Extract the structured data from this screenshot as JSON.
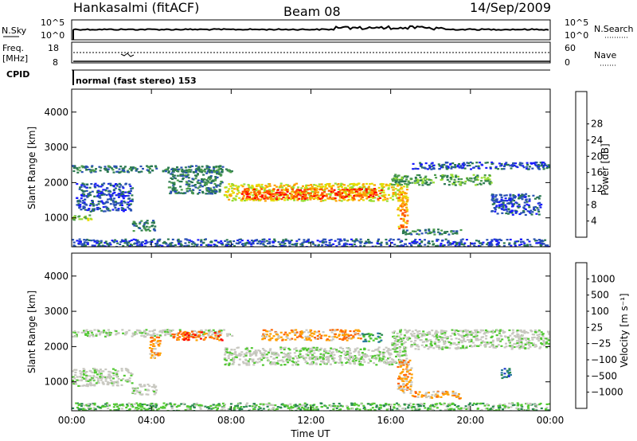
{
  "header": {
    "station": "Hankasalmi (fitACF)",
    "beam": "Beam 08",
    "date": "14/Sep/2009"
  },
  "top_panels": {
    "nsky_label": "N.Sky",
    "nsky_ticks": [
      "10^5",
      "10^0"
    ],
    "nsearch_label": "N.Search",
    "nsearch_ticks": [
      "10^5",
      "10^0"
    ],
    "freq_label_1": "Freq.",
    "freq_label_2": "[MHz]",
    "freq_ticks": [
      "18",
      "8"
    ],
    "nave_label": "Nave",
    "nave_ticks": [
      "60",
      "0"
    ],
    "cpid_label": "CPID",
    "cpid_value": "normal (fast stereo) 153"
  },
  "chart_data": [
    {
      "type": "heatmap",
      "quantity": "Power",
      "x_ticks": [
        "00:00",
        "04:00",
        "08:00",
        "12:00",
        "16:00",
        "20:00",
        "00:00"
      ],
      "xlim_hours": [
        0,
        24
      ],
      "ylabel": "Slant Range [km]",
      "ylim_km": [
        180,
        4650
      ],
      "y_ticks": [
        "1000",
        "2000",
        "3000",
        "4000"
      ],
      "colorbar_label": "Power [dB]",
      "colorbar_ticks": [
        "4",
        "8",
        "12",
        "16",
        "20",
        "24",
        "28"
      ],
      "colorbar_colors": [
        "#1a1aff",
        "#2850b4",
        "#2a7850",
        "#4c9c4c",
        "#96dc32",
        "#e6dc00",
        "#ffa000",
        "#ff5000",
        "#ff0000"
      ],
      "regions": [
        {
          "t0": 0.0,
          "t1": 8.0,
          "r0": 2300,
          "r1": 2500,
          "level": 2
        },
        {
          "t0": 0.0,
          "t1": 1.0,
          "r0": 950,
          "r1": 1100,
          "level": 4
        },
        {
          "t0": 0.2,
          "t1": 3.0,
          "r0": 1200,
          "r1": 2000,
          "level": 1
        },
        {
          "t0": 3.0,
          "t1": 4.2,
          "r0": 650,
          "r1": 950,
          "level": 2
        },
        {
          "t0": 4.8,
          "t1": 7.5,
          "r0": 1700,
          "r1": 2400,
          "level": 2
        },
        {
          "t0": 7.6,
          "t1": 16.8,
          "r0": 1500,
          "r1": 2000,
          "level": 5
        },
        {
          "t0": 8.5,
          "t1": 15.5,
          "r0": 1550,
          "r1": 1850,
          "level": 7
        },
        {
          "t0": 16.0,
          "t1": 21.0,
          "r0": 1950,
          "r1": 2250,
          "level": 3
        },
        {
          "t0": 16.3,
          "t1": 16.8,
          "r0": 700,
          "r1": 1700,
          "level": 6
        },
        {
          "t0": 16.5,
          "t1": 19.5,
          "r0": 550,
          "r1": 700,
          "level": 2
        },
        {
          "t0": 17.0,
          "t1": 24.0,
          "r0": 2400,
          "r1": 2600,
          "level": 1
        },
        {
          "t0": 21.0,
          "t1": 23.5,
          "r0": 1100,
          "r1": 1700,
          "level": 1
        },
        {
          "t0": 0.0,
          "t1": 24.0,
          "r0": 180,
          "r1": 420,
          "level": 1
        }
      ]
    },
    {
      "type": "heatmap",
      "quantity": "Velocity",
      "x_ticks": [
        "00:00",
        "04:00",
        "08:00",
        "12:00",
        "16:00",
        "20:00",
        "00:00"
      ],
      "xlim_hours": [
        0,
        24
      ],
      "xlabel": "Time UT",
      "ylabel": "Slant Range [km]",
      "ylim_km": [
        180,
        4650
      ],
      "y_ticks": [
        "1000",
        "2000",
        "3000",
        "4000"
      ],
      "colorbar_label": "Velocity [m s⁻¹]",
      "colorbar_ticks": [
        "1000",
        "500",
        "100",
        "25",
        "−25",
        "−100",
        "−500",
        "−1000"
      ],
      "colorbar_colors": [
        "#1e3cc8",
        "#2a7aa0",
        "#2a8a50",
        "#52c832",
        "#c8c8c0",
        "#c8c8c0",
        "#ffa000",
        "#ff6400",
        "#ff0000"
      ],
      "regions": [
        {
          "t0": 0.0,
          "t1": 8.0,
          "r0": 2300,
          "r1": 2500,
          "level": 4
        },
        {
          "t0": 0.0,
          "t1": 3.0,
          "r0": 900,
          "r1": 1400,
          "level": 4
        },
        {
          "t0": 3.0,
          "t1": 4.2,
          "r0": 650,
          "r1": 950,
          "level": 4
        },
        {
          "t0": 3.8,
          "t1": 4.4,
          "r0": 1700,
          "r1": 2300,
          "level": 6
        },
        {
          "t0": 5.0,
          "t1": 7.5,
          "r0": 2200,
          "r1": 2450,
          "level": 7
        },
        {
          "t0": 7.6,
          "t1": 16.8,
          "r0": 1500,
          "r1": 2000,
          "level": 4
        },
        {
          "t0": 9.5,
          "t1": 14.5,
          "r0": 2200,
          "r1": 2500,
          "level": 6
        },
        {
          "t0": 14.5,
          "t1": 15.5,
          "r0": 2150,
          "r1": 2400,
          "level": 2
        },
        {
          "t0": 16.0,
          "t1": 24.0,
          "r0": 1950,
          "r1": 2500,
          "level": 4
        },
        {
          "t0": 16.3,
          "t1": 17.0,
          "r0": 700,
          "r1": 1700,
          "level": 6
        },
        {
          "t0": 17.0,
          "t1": 19.5,
          "r0": 550,
          "r1": 750,
          "level": 6
        },
        {
          "t0": 21.5,
          "t1": 22.0,
          "r0": 1100,
          "r1": 1400,
          "level": 1
        },
        {
          "t0": 0.0,
          "t1": 24.0,
          "r0": 180,
          "r1": 420,
          "level": 3
        }
      ]
    }
  ]
}
